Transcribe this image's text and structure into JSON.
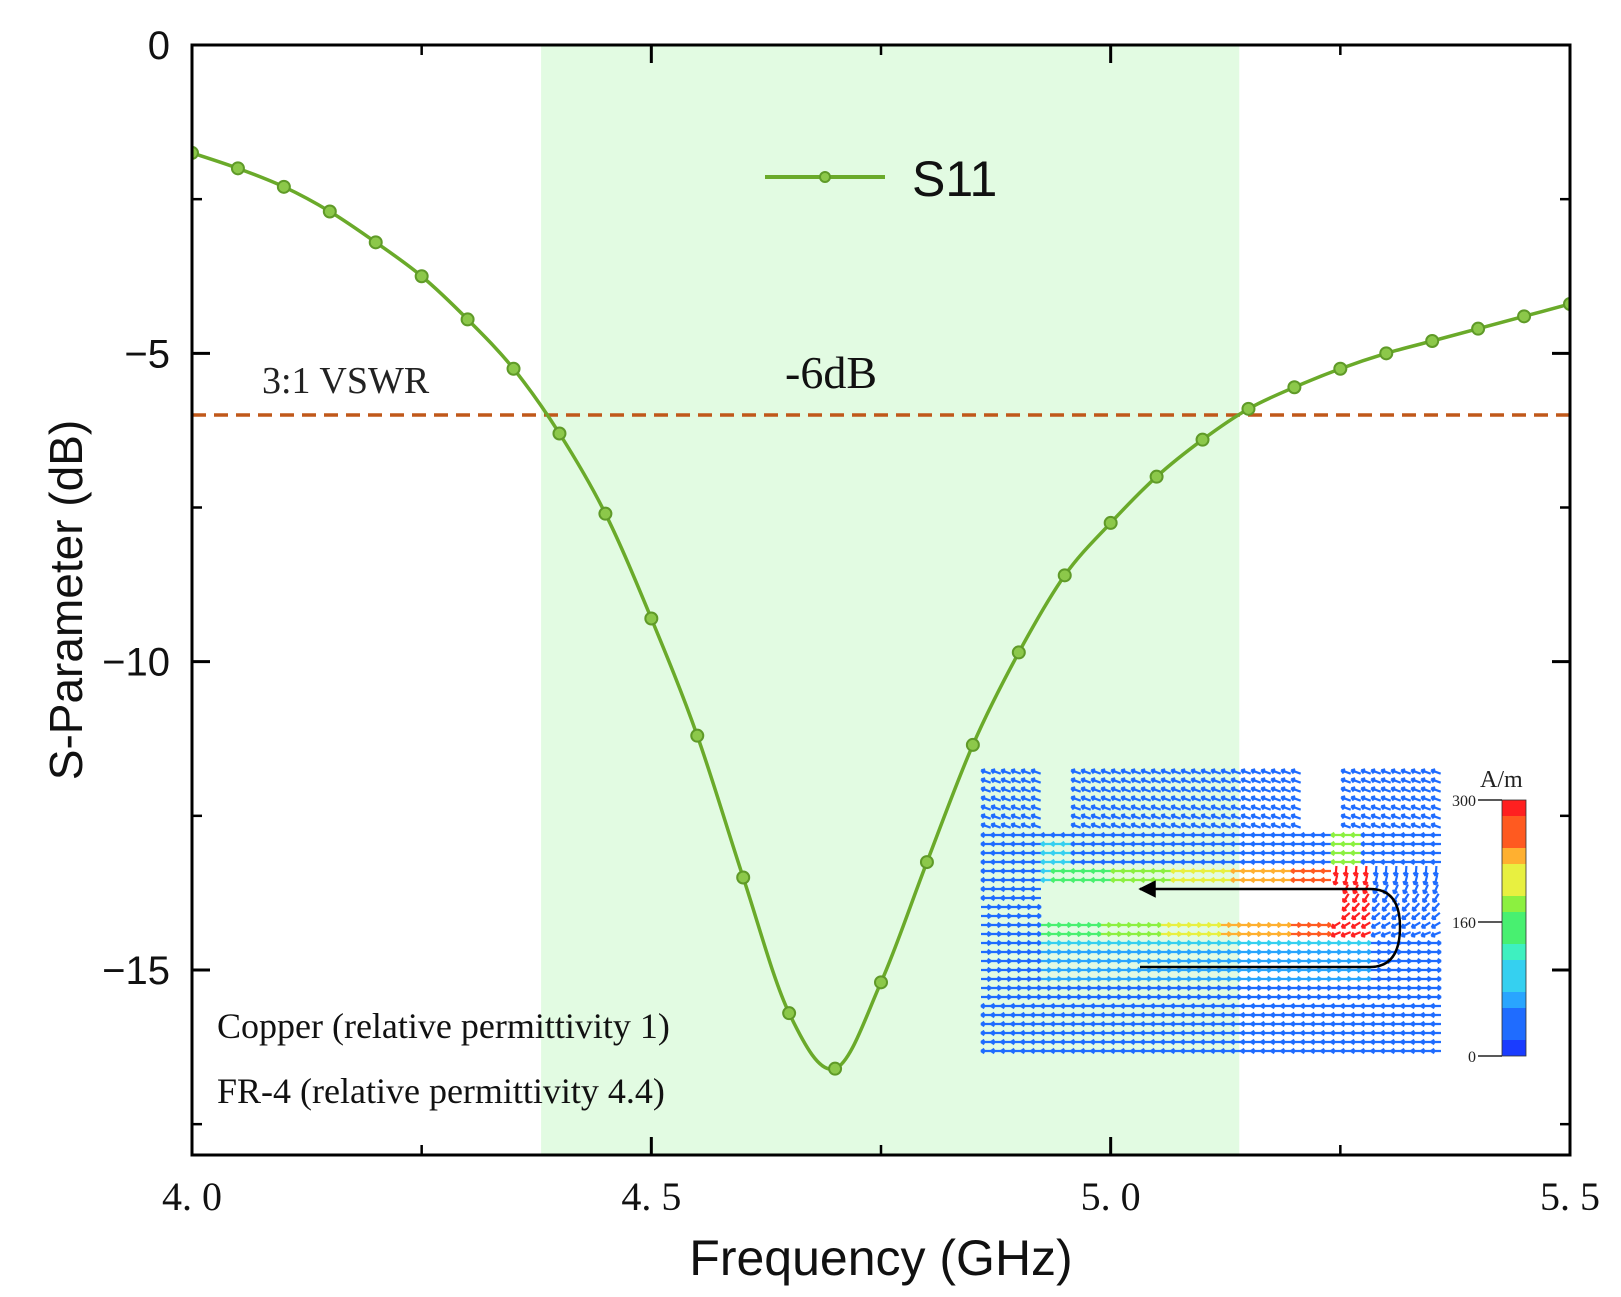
{
  "chart_data": {
    "type": "line",
    "xlabel": "Frequency (GHz)",
    "ylabel": "S-Parameter (dB)",
    "xlim": [
      4.0,
      5.5
    ],
    "ylim": [
      -18,
      0
    ],
    "x_ticks": [
      4.0,
      4.5,
      5.0,
      5.5
    ],
    "x_tick_labels": [
      "4. 0",
      "4. 5",
      "5. 0",
      "5. 5"
    ],
    "y_ticks": [
      0,
      -5,
      -10,
      -15
    ],
    "y_tick_labels": [
      "0",
      "−5",
      "−10",
      "−15"
    ],
    "grid": false,
    "legend": {
      "position": "top-center",
      "entries": [
        "S11"
      ]
    },
    "series": [
      {
        "name": "S11",
        "color": "#6aaa2a",
        "x": [
          4.0,
          4.05,
          4.1,
          4.15,
          4.2,
          4.25,
          4.3,
          4.35,
          4.4,
          4.45,
          4.5,
          4.55,
          4.6,
          4.65,
          4.7,
          4.75,
          4.8,
          4.85,
          4.9,
          4.95,
          5.0,
          5.05,
          5.1,
          5.15,
          5.2,
          5.25,
          5.3,
          5.35,
          5.4,
          5.45,
          5.5
        ],
        "y": [
          -1.75,
          -2.0,
          -2.3,
          -2.7,
          -3.2,
          -3.75,
          -4.45,
          -5.25,
          -6.3,
          -7.6,
          -9.3,
          -11.2,
          -13.5,
          -15.7,
          -16.6,
          -15.2,
          -13.25,
          -11.35,
          -9.85,
          -8.6,
          -7.75,
          -7.0,
          -6.4,
          -5.9,
          -5.55,
          -5.25,
          -5.0,
          -4.8,
          -4.6,
          -4.4,
          -4.2
        ]
      }
    ],
    "band": {
      "x_start": 4.38,
      "x_end": 5.14,
      "color": "#e2fbe2"
    },
    "threshold": {
      "y": -6,
      "color": "#c0581a",
      "label": "3:1 VSWR",
      "band_label": "-6dB"
    },
    "annotations": [
      "Copper (relative permittivity 1)",
      "FR-4 (relative permittivity 4.4)"
    ],
    "inset": {
      "description_hidden": true,
      "colorbar_unit": "A/m",
      "colorbar_ticks": [
        300,
        160,
        0
      ],
      "colorbar_tick_labels": [
        "300",
        "160",
        "0"
      ]
    }
  }
}
